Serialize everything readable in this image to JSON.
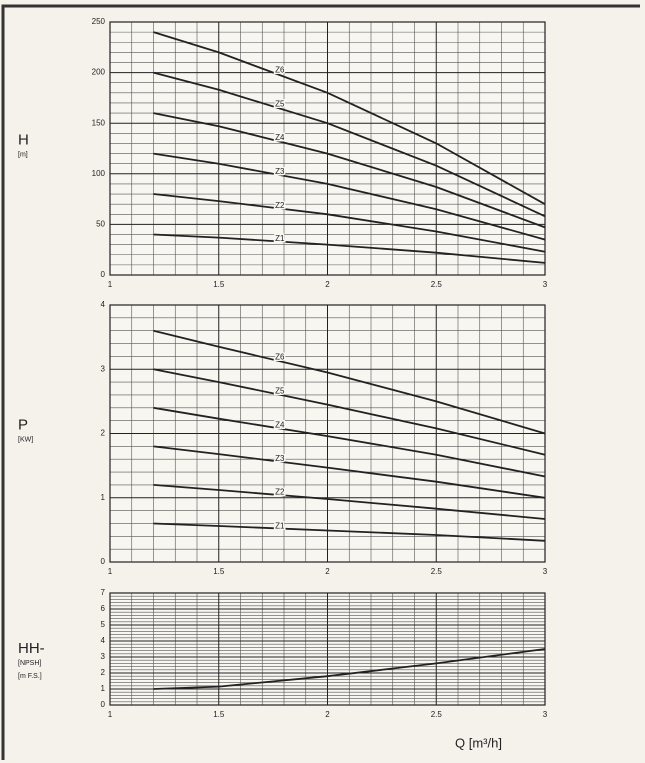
{
  "chart_data": [
    {
      "type": "line",
      "ylabel": "H",
      "yunit": [
        "[m]"
      ],
      "x": [
        1.2,
        1.5,
        2,
        2.5,
        3
      ],
      "xlim": [
        1,
        3
      ],
      "xticks": [
        1,
        1.5,
        2,
        2.5,
        3
      ],
      "ylim": [
        0,
        250
      ],
      "yticks": [
        0,
        50,
        100,
        150,
        200,
        250
      ],
      "grid": true,
      "series": [
        {
          "name": "Z6",
          "color": "#222222",
          "values": [
            240,
            220,
            180,
            130,
            70
          ]
        },
        {
          "name": "Z5",
          "color": "#222222",
          "values": [
            200,
            183,
            150,
            108,
            58
          ]
        },
        {
          "name": "Z4",
          "color": "#222222",
          "values": [
            160,
            147,
            120,
            87,
            47
          ]
        },
        {
          "name": "Z3",
          "color": "#222222",
          "values": [
            120,
            110,
            90,
            65,
            35
          ]
        },
        {
          "name": "Z2",
          "color": "#222222",
          "values": [
            80,
            73,
            60,
            43,
            23
          ]
        },
        {
          "name": "Z1",
          "color": "#222222",
          "values": [
            40,
            37,
            30,
            22,
            12
          ]
        }
      ]
    },
    {
      "type": "line",
      "ylabel": "P",
      "yunit": [
        "[KW]"
      ],
      "x": [
        1.2,
        1.5,
        2,
        2.5,
        3
      ],
      "xlim": [
        1,
        3
      ],
      "xticks": [
        1,
        1.5,
        2,
        2.5,
        3
      ],
      "ylim": [
        0,
        4
      ],
      "yticks": [
        0,
        1,
        2,
        3,
        4
      ],
      "grid": true,
      "series": [
        {
          "name": "Z6",
          "color": "#222222",
          "values": [
            3.6,
            3.35,
            2.95,
            2.5,
            2.0
          ]
        },
        {
          "name": "Z5",
          "color": "#222222",
          "values": [
            3.0,
            2.8,
            2.45,
            2.08,
            1.67
          ]
        },
        {
          "name": "Z4",
          "color": "#222222",
          "values": [
            2.4,
            2.23,
            1.96,
            1.67,
            1.33
          ]
        },
        {
          "name": "Z3",
          "color": "#222222",
          "values": [
            1.8,
            1.68,
            1.47,
            1.25,
            1.0
          ]
        },
        {
          "name": "Z2",
          "color": "#222222",
          "values": [
            1.2,
            1.12,
            0.98,
            0.83,
            0.67
          ]
        },
        {
          "name": "Z1",
          "color": "#222222",
          "values": [
            0.6,
            0.56,
            0.49,
            0.42,
            0.33
          ]
        }
      ]
    },
    {
      "type": "line",
      "ylabel": "HH-",
      "yunit": [
        "[NPSH]",
        "[m F.S.]"
      ],
      "xlabel": "Q [m³/h]",
      "x": [
        1.2,
        1.5,
        2,
        2.5,
        3
      ],
      "xlim": [
        1,
        3
      ],
      "xticks": [
        1,
        1.5,
        2,
        2.5,
        3
      ],
      "ylim": [
        0,
        7
      ],
      "yticks": [
        0,
        1,
        2,
        3,
        4,
        5,
        6,
        7
      ],
      "grid": true,
      "series": [
        {
          "color": "#222222",
          "values": [
            1.0,
            1.15,
            1.8,
            2.6,
            3.5
          ]
        }
      ]
    }
  ]
}
